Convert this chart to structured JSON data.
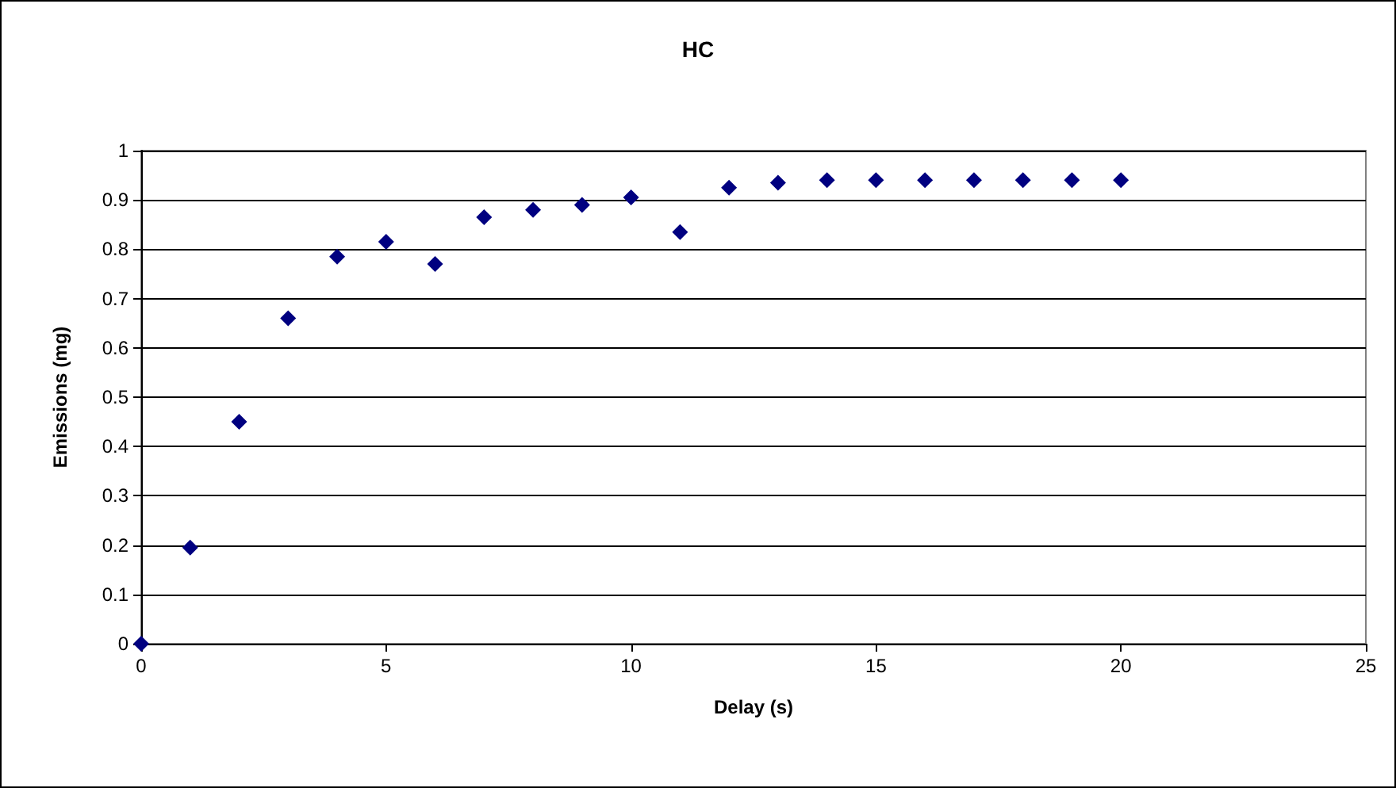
{
  "chart_data": {
    "type": "scatter",
    "title": "HC",
    "xlabel": "Delay (s)",
    "ylabel": "Emissions (mg)",
    "x": [
      0,
      1,
      2,
      3,
      4,
      5,
      6,
      7,
      8,
      9,
      10,
      11,
      12,
      13,
      14,
      15,
      16,
      17,
      18,
      19,
      20
    ],
    "series": [
      {
        "color": "#000080",
        "values": [
          0,
          0.195,
          0.45,
          0.66,
          0.785,
          0.815,
          0.77,
          0.865,
          0.88,
          0.89,
          0.905,
          0.835,
          0.925,
          0.935,
          0.94,
          0.94,
          0.94,
          0.94,
          0.94,
          0.94,
          0.94
        ]
      }
    ],
    "xlim": [
      0,
      25
    ],
    "xticks": [
      0,
      5,
      10,
      15,
      20,
      25
    ],
    "ylim": [
      0,
      1
    ],
    "yticks": [
      0,
      0.1,
      0.2,
      0.3,
      0.4,
      0.5,
      0.6,
      0.7,
      0.8,
      0.9,
      1
    ],
    "grid": "y",
    "marker": "diamond"
  }
}
